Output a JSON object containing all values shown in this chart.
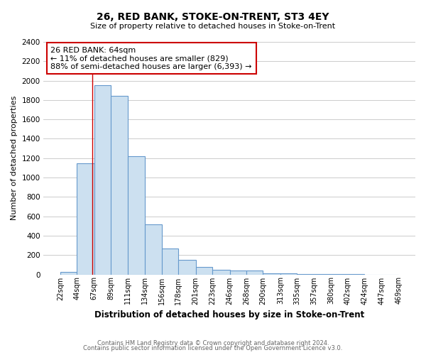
{
  "title": "26, RED BANK, STOKE-ON-TRENT, ST3 4EY",
  "subtitle": "Size of property relative to detached houses in Stoke-on-Trent",
  "xlabel": "Distribution of detached houses by size in Stoke-on-Trent",
  "ylabel": "Number of detached properties",
  "bar_edges": [
    22,
    44,
    67,
    89,
    111,
    134,
    156,
    178,
    201,
    223,
    246,
    268,
    290,
    313,
    335,
    357,
    380,
    402,
    424,
    447,
    469
  ],
  "bar_heights": [
    25,
    1150,
    1950,
    1840,
    1220,
    520,
    265,
    148,
    78,
    50,
    38,
    38,
    12,
    8,
    4,
    2,
    1,
    1,
    0,
    0
  ],
  "bar_color": "#cce0f0",
  "bar_edge_color": "#6699cc",
  "property_line_x": 64,
  "property_line_color": "#cc0000",
  "annotation_title": "26 RED BANK: 64sqm",
  "annotation_line1": "← 11% of detached houses are smaller (829)",
  "annotation_line2": "88% of semi-detached houses are larger (6,393) →",
  "annotation_box_color": "#ffffff",
  "annotation_box_edge_color": "#cc0000",
  "ylim": [
    0,
    2400
  ],
  "yticks": [
    0,
    200,
    400,
    600,
    800,
    1000,
    1200,
    1400,
    1600,
    1800,
    2000,
    2200,
    2400
  ],
  "xtick_labels": [
    "22sqm",
    "44sqm",
    "67sqm",
    "89sqm",
    "111sqm",
    "134sqm",
    "156sqm",
    "178sqm",
    "201sqm",
    "223sqm",
    "246sqm",
    "268sqm",
    "290sqm",
    "313sqm",
    "335sqm",
    "357sqm",
    "380sqm",
    "402sqm",
    "424sqm",
    "447sqm",
    "469sqm"
  ],
  "footer_line1": "Contains HM Land Registry data © Crown copyright and database right 2024.",
  "footer_line2": "Contains public sector information licensed under the Open Government Licence v3.0.",
  "bg_color": "#ffffff",
  "plot_bg_color": "#ffffff",
  "grid_color": "#cccccc"
}
